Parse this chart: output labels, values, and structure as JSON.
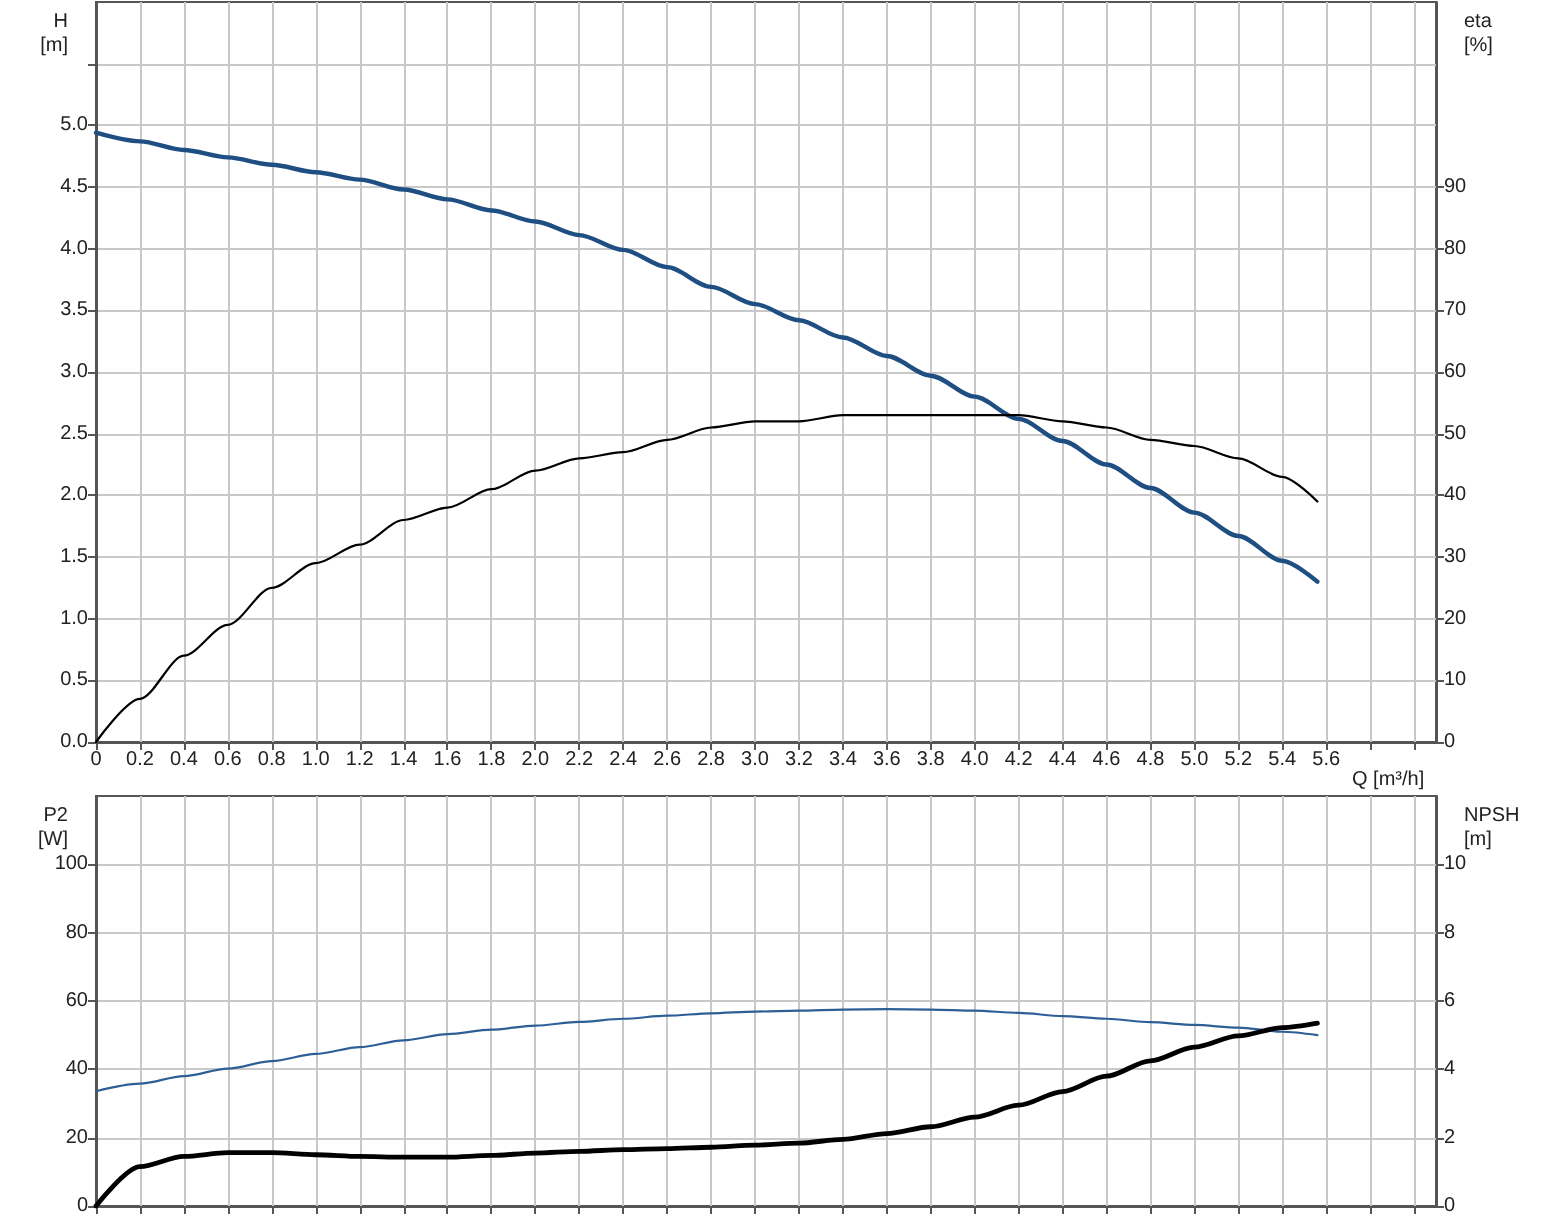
{
  "chart_data": [
    {
      "type": "line",
      "xlabel": "Q [m³/h]",
      "ylabel": "H [m]",
      "y2label": "eta [%]",
      "x": [
        0,
        0.2,
        0.4,
        0.6,
        0.8,
        1.0,
        1.2,
        1.4,
        1.6,
        1.8,
        2.0,
        2.2,
        2.4,
        2.6,
        2.8,
        3.0,
        3.2,
        3.4,
        3.6,
        3.8,
        4.0,
        4.2,
        4.4,
        4.6,
        4.8,
        5.0,
        5.2,
        5.4,
        5.56
      ],
      "series": [
        {
          "color": "#1f4f82",
          "values": [
            4.94,
            4.87,
            4.8,
            4.74,
            4.68,
            4.62,
            4.56,
            4.48,
            4.4,
            4.31,
            4.22,
            4.11,
            3.99,
            3.85,
            3.69,
            3.55,
            3.42,
            3.28,
            3.13,
            2.97,
            2.8,
            2.62,
            2.44,
            2.25,
            2.06,
            1.86,
            1.67,
            1.47,
            1.3
          ]
        },
        {
          "color": "#000000",
          "axis": "y2",
          "values": [
            0,
            7,
            14,
            19,
            25,
            29,
            32,
            36,
            38,
            41,
            44,
            46,
            47,
            49,
            51,
            52,
            52,
            53,
            53,
            53,
            53,
            53,
            52,
            51,
            49,
            48,
            46,
            43,
            39
          ]
        }
      ],
      "xlim": [
        0,
        6.1
      ],
      "xticks": [
        {
          "value": 0,
          "label": "0"
        },
        0.2,
        0.4,
        0.6,
        0.8,
        {
          "value": 1,
          "label": "1.0"
        },
        1.2,
        1.4,
        1.6,
        1.8,
        {
          "value": 2,
          "label": "2.0"
        },
        2.2,
        2.4,
        2.6,
        2.8,
        {
          "value": 3,
          "label": "3.0"
        },
        3.2,
        3.4,
        3.6,
        3.8,
        {
          "value": 4,
          "label": "4.0"
        },
        4.2,
        4.4,
        4.6,
        4.8,
        {
          "value": 5,
          "label": "5.0"
        },
        5.2,
        5.4,
        5.6,
        {
          "value": 5.8,
          "label": null
        },
        {
          "value": 6,
          "label": null
        }
      ],
      "ylim": [
        0,
        6
      ],
      "yticks": [
        {
          "value": 0,
          "label": "0.0"
        },
        0.5,
        {
          "value": 1,
          "label": "1.0"
        },
        1.5,
        {
          "value": 2,
          "label": "2.0"
        },
        2.5,
        {
          "value": 3,
          "label": "3.0"
        },
        3.5,
        {
          "value": 4,
          "label": "4.0"
        },
        4.5,
        {
          "value": 5,
          "label": "5.0"
        },
        {
          "value": 5.5,
          "label": null
        }
      ],
      "y2lim": [
        0,
        120
      ],
      "y2ticks": [
        0,
        10,
        20,
        30,
        40,
        50,
        60,
        70,
        80,
        90
      ],
      "grid": true,
      "marker": "none"
    },
    {
      "type": "line",
      "ylabel": "P2 [W]",
      "y2label": "NPSH [m]",
      "x": [
        0,
        0.2,
        0.4,
        0.6,
        0.8,
        1.0,
        1.2,
        1.4,
        1.6,
        1.8,
        2.0,
        2.2,
        2.4,
        2.6,
        2.8,
        3.0,
        3.2,
        3.4,
        3.6,
        3.8,
        4.0,
        4.2,
        4.4,
        4.6,
        4.8,
        5.0,
        5.2,
        5.4,
        5.56
      ],
      "series": [
        {
          "color": "#2d5f96",
          "values": [
            33.6,
            35.8,
            38,
            40.2,
            42.4,
            44.5,
            46.5,
            48.5,
            50.3,
            51.6,
            52.8,
            53.9,
            54.8,
            55.7,
            56.4,
            56.9,
            57.2,
            57.5,
            57.6,
            57.5,
            57.2,
            56.5,
            55.6,
            54.8,
            53.8,
            53,
            52.2,
            51,
            50
          ]
        },
        {
          "color": "#000000",
          "axis": "y2",
          "values": [
            0,
            1.15,
            1.45,
            1.56,
            1.56,
            1.5,
            1.45,
            1.43,
            1.43,
            1.48,
            1.55,
            1.6,
            1.65,
            1.68,
            1.72,
            1.78,
            1.84,
            1.95,
            2.12,
            2.32,
            2.6,
            2.95,
            3.35,
            3.8,
            4.25,
            4.65,
            4.98,
            5.22,
            5.35
          ]
        }
      ],
      "xlim": [
        0,
        6.1
      ],
      "xticks": [
        0,
        0.2,
        0.4,
        0.6,
        0.8,
        1,
        1.2,
        1.4,
        1.6,
        1.8,
        2,
        2.2,
        2.4,
        2.6,
        2.8,
        3,
        3.2,
        3.4,
        3.6,
        3.8,
        4,
        4.2,
        4.4,
        4.6,
        4.8,
        5,
        5.2,
        5.4,
        5.6,
        5.8,
        6
      ],
      "ylim": [
        0,
        120
      ],
      "yticks": [
        0,
        20,
        40,
        60,
        80,
        100
      ],
      "y2lim": [
        0,
        12
      ],
      "y2ticks": [
        0,
        2,
        4,
        6,
        8,
        10
      ],
      "tick_labels": "y",
      "grid": true,
      "marker": "none"
    }
  ]
}
